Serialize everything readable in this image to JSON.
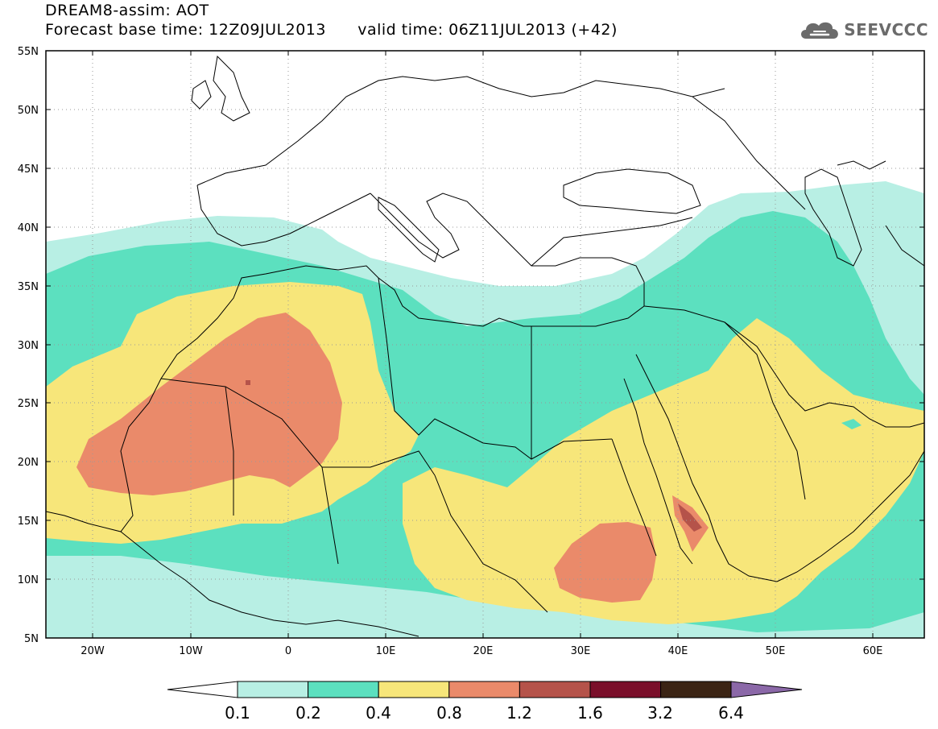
{
  "header": {
    "title": "DREAM8-assim: AOT",
    "base_time_label": "Forecast base time: 12Z09JUL2013",
    "valid_time_label": "valid time: 06Z11JUL2013 (+42)"
  },
  "logo": {
    "text": "SEEVCCC",
    "icon": "cloud-icon"
  },
  "map": {
    "x_ticks": [
      "20W",
      "10W",
      "0",
      "10E",
      "20E",
      "30E",
      "40E",
      "50E",
      "60E"
    ],
    "y_ticks": [
      "55N",
      "50N",
      "45N",
      "40N",
      "35N",
      "30N",
      "25N",
      "20N",
      "15N",
      "10N",
      "5N"
    ]
  },
  "colorbar": {
    "labels": [
      "0.1",
      "0.2",
      "0.4",
      "0.8",
      "1.2",
      "1.6",
      "3.2",
      "6.4"
    ],
    "colors": [
      "#ffffff",
      "#b8efe4",
      "#5ce0bf",
      "#f7e67a",
      "#ea8a6a",
      "#b5534a",
      "#7a0f2a",
      "#3b2414",
      "#8b68a8"
    ]
  }
}
